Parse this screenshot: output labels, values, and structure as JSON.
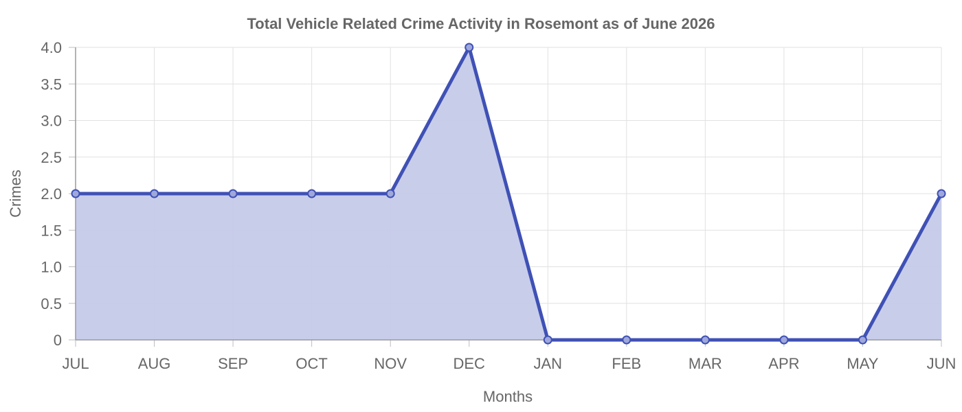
{
  "chart_data": {
    "type": "area",
    "title": "Total Vehicle Related Crime Activity in Rosemont as of June 2026",
    "xlabel": "Months",
    "ylabel": "Crimes",
    "categories": [
      "JUL",
      "AUG",
      "SEP",
      "OCT",
      "NOV",
      "DEC",
      "JAN",
      "FEB",
      "MAR",
      "APR",
      "MAY",
      "JUN"
    ],
    "values": [
      2,
      2,
      2,
      2,
      2,
      4,
      0,
      0,
      0,
      0,
      0,
      2
    ],
    "ylim": [
      0,
      4
    ],
    "yticks": [
      "0",
      "0.5",
      "1.0",
      "1.5",
      "2.0",
      "2.5",
      "3.0",
      "3.5",
      "4.0"
    ],
    "grid": true,
    "legend": "none",
    "colors": {
      "line": "#3f51b5",
      "fill": "#c5cae9",
      "text": "#666666"
    }
  }
}
